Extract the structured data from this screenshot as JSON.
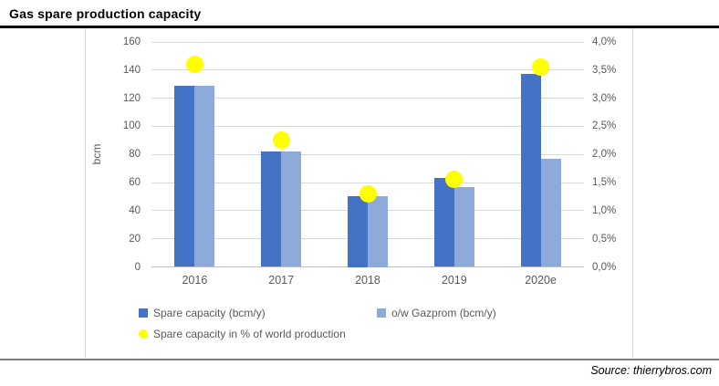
{
  "page": {
    "title": "Gas spare production capacity",
    "source": "Source: thierrybros.com"
  },
  "chart_data": {
    "type": "bar",
    "subtype": "combo-clustered-bar-with-scatter",
    "title": "Gas spare production capacity",
    "categories": [
      "2016",
      "2017",
      "2018",
      "2019",
      "2020e"
    ],
    "series": [
      {
        "name": "Spare capacity (bcm/y)",
        "kind": "bar",
        "axis": "left",
        "color": "#4472C4",
        "values": [
          129,
          82,
          50,
          63,
          137
        ]
      },
      {
        "name": "o/w Gazprom (bcm/y)",
        "kind": "bar",
        "axis": "left",
        "color": "#8EAADB",
        "values": [
          129,
          82,
          50,
          57,
          77
        ]
      },
      {
        "name": "Spare capacity in % of world production",
        "kind": "scatter",
        "axis": "right",
        "color": "#FFFF00",
        "values": [
          3.6,
          2.25,
          1.3,
          1.55,
          3.55
        ]
      }
    ],
    "left_axis": {
      "label": "bcm",
      "min": 0,
      "max": 160,
      "step": 20,
      "tick_labels": [
        "0",
        "20",
        "40",
        "60",
        "80",
        "100",
        "120",
        "140",
        "160"
      ]
    },
    "right_axis": {
      "label": "",
      "min": 0,
      "max": 4,
      "step": 0.5,
      "tick_labels": [
        "0,0%",
        "0,5%",
        "1,0%",
        "1,5%",
        "2,0%",
        "2,5%",
        "3,0%",
        "3,5%",
        "4,0%"
      ]
    },
    "grid": true,
    "legend_position": "bottom",
    "colors": {
      "gridline": "#D9D9D9",
      "axis_line": "#BFBFBF",
      "axis_text": "#595959",
      "title_text": "#000000"
    }
  }
}
